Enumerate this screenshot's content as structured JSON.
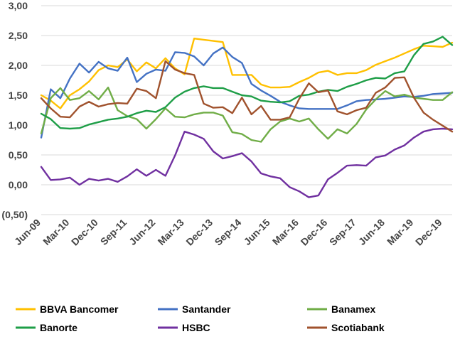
{
  "chart_data": {
    "type": "line",
    "title": "",
    "xlabel": "",
    "ylabel": "",
    "ylim": [
      -0.5,
      3.0
    ],
    "yticks": [
      -0.5,
      0.0,
      0.5,
      1.0,
      1.5,
      2.0,
      2.5,
      3.0
    ],
    "ytick_labels": [
      "(0,50)",
      "0,00",
      "0,50",
      "1,00",
      "1,50",
      "2,00",
      "2,50",
      "3,00"
    ],
    "x_tick_labels": [
      "Jun-09",
      "Mar-10",
      "Dec-10",
      "Sep-11",
      "Jun-12",
      "Mar-13",
      "Dec-13",
      "Sep-14",
      "Jun-15",
      "Mar-16",
      "Dec-16",
      "Sep-17",
      "Jun-18",
      "Mar-19",
      "Dec-19"
    ],
    "x_tick_step": 3,
    "grid": "horizontal",
    "legend_position": "bottom",
    "series": [
      {
        "name": "BBVA Bancomer",
        "color": "#FFC000",
        "values": [
          1.5,
          1.41,
          1.28,
          1.5,
          1.6,
          1.73,
          1.92,
          2.0,
          1.97,
          2.1,
          1.9,
          2.05,
          1.95,
          2.12,
          1.95,
          1.85,
          2.45,
          2.43,
          2.41,
          2.39,
          1.84,
          1.84,
          1.84,
          1.68,
          1.63,
          1.63,
          1.64,
          1.72,
          1.79,
          1.88,
          1.91,
          1.84,
          1.87,
          1.87,
          1.92,
          2.01,
          2.07,
          2.13,
          2.2,
          2.27,
          2.33,
          2.32,
          2.31,
          2.38
        ]
      },
      {
        "name": "Santander",
        "color": "#4472C4",
        "values": [
          0.79,
          1.6,
          1.45,
          1.78,
          2.03,
          1.88,
          2.06,
          1.95,
          1.91,
          2.13,
          1.72,
          1.86,
          1.93,
          1.91,
          2.22,
          2.21,
          2.15,
          2.0,
          2.2,
          2.3,
          2.14,
          2.04,
          1.69,
          1.58,
          1.49,
          1.39,
          1.33,
          1.28,
          1.27,
          1.27,
          1.27,
          1.27,
          1.33,
          1.4,
          1.42,
          1.43,
          1.44,
          1.46,
          1.48,
          1.47,
          1.49,
          1.52,
          1.53,
          1.54
        ]
      },
      {
        "name": "Banamex",
        "color": "#70AD47",
        "values": [
          0.86,
          1.45,
          1.62,
          1.42,
          1.45,
          1.57,
          1.43,
          1.63,
          1.25,
          1.15,
          1.1,
          0.94,
          1.1,
          1.28,
          1.14,
          1.13,
          1.18,
          1.21,
          1.21,
          1.16,
          0.88,
          0.85,
          0.75,
          0.72,
          0.93,
          1.06,
          1.11,
          1.06,
          1.11,
          0.93,
          0.77,
          0.93,
          0.86,
          1.02,
          1.26,
          1.43,
          1.57,
          1.48,
          1.51,
          1.46,
          1.44,
          1.42,
          1.42,
          1.55
        ]
      },
      {
        "name": "Banorte",
        "color": "#1E9E47",
        "values": [
          1.19,
          1.1,
          0.95,
          0.94,
          0.95,
          1.01,
          1.05,
          1.09,
          1.11,
          1.14,
          1.2,
          1.24,
          1.22,
          1.3,
          1.46,
          1.56,
          1.62,
          1.65,
          1.62,
          1.62,
          1.56,
          1.5,
          1.48,
          1.41,
          1.39,
          1.38,
          1.4,
          1.49,
          1.51,
          1.56,
          1.59,
          1.57,
          1.64,
          1.69,
          1.75,
          1.79,
          1.78,
          1.87,
          1.9,
          2.17,
          2.36,
          2.4,
          2.48,
          2.34
        ]
      },
      {
        "name": "HSBC",
        "color": "#7030A0",
        "values": [
          0.3,
          0.08,
          0.09,
          0.12,
          0.0,
          0.1,
          0.07,
          0.1,
          0.05,
          0.14,
          0.26,
          0.15,
          0.25,
          0.15,
          0.49,
          0.89,
          0.84,
          0.77,
          0.56,
          0.44,
          0.48,
          0.53,
          0.39,
          0.19,
          0.14,
          0.11,
          -0.04,
          -0.11,
          -0.21,
          -0.18,
          0.09,
          0.2,
          0.32,
          0.33,
          0.32,
          0.46,
          0.49,
          0.59,
          0.66,
          0.79,
          0.89,
          0.93,
          0.94,
          0.93
        ]
      },
      {
        "name": "Scotiabank",
        "color": "#A0522D",
        "values": [
          1.45,
          1.28,
          1.14,
          1.13,
          1.31,
          1.39,
          1.31,
          1.35,
          1.37,
          1.36,
          1.61,
          1.57,
          1.45,
          2.07,
          1.93,
          1.87,
          1.84,
          1.36,
          1.29,
          1.3,
          1.2,
          1.46,
          1.18,
          1.32,
          1.09,
          1.09,
          1.13,
          1.44,
          1.7,
          1.55,
          1.58,
          1.23,
          1.18,
          1.25,
          1.29,
          1.54,
          1.63,
          1.79,
          1.8,
          1.46,
          1.21,
          1.09,
          0.99,
          0.89
        ]
      }
    ]
  }
}
